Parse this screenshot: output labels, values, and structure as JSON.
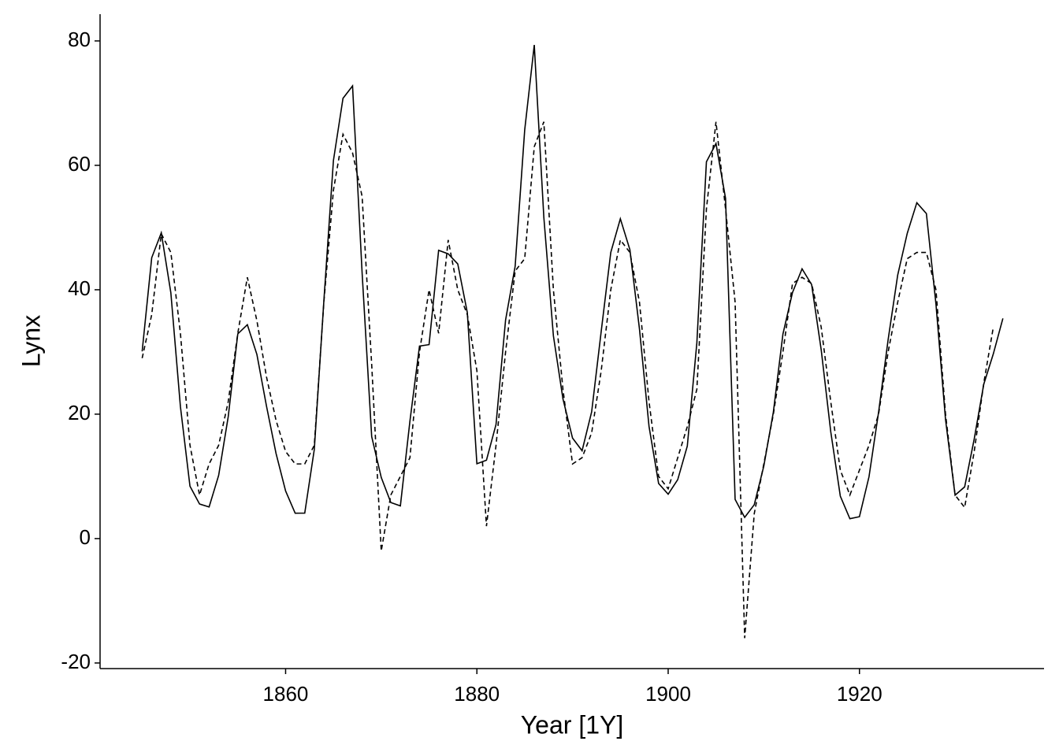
{
  "chart_data": {
    "type": "line",
    "x_label": "Year [1Y]",
    "y_label": "Lynx",
    "x": [
      1845,
      1846,
      1847,
      1848,
      1849,
      1850,
      1851,
      1852,
      1853,
      1854,
      1855,
      1856,
      1857,
      1858,
      1859,
      1860,
      1861,
      1862,
      1863,
      1864,
      1865,
      1866,
      1867,
      1868,
      1869,
      1870,
      1871,
      1872,
      1873,
      1874,
      1875,
      1876,
      1877,
      1878,
      1879,
      1880,
      1881,
      1882,
      1883,
      1884,
      1885,
      1886,
      1887,
      1888,
      1889,
      1890,
      1891,
      1892,
      1893,
      1894,
      1895,
      1896,
      1897,
      1898,
      1899,
      1900,
      1901,
      1902,
      1903,
      1904,
      1905,
      1906,
      1907,
      1908,
      1909,
      1910,
      1911,
      1912,
      1913,
      1914,
      1915,
      1916,
      1917,
      1918,
      1919,
      1920,
      1921,
      1922,
      1923,
      1924,
      1925,
      1926,
      1927,
      1928,
      1929,
      1930,
      1931,
      1932,
      1933,
      1934,
      1935
    ],
    "series": [
      {
        "color": "#000000",
        "linestyle": "solid",
        "values": [
          30.09,
          45.15,
          49.15,
          39.52,
          21.23,
          8.42,
          5.56,
          5.08,
          10.17,
          19.6,
          32.91,
          34.38,
          29.59,
          21.3,
          13.69,
          7.65,
          4.08,
          4.09,
          14.33,
          38.22,
          60.78,
          70.77,
          72.77,
          42.68,
          16.39,
          9.83,
          5.8,
          5.26,
          18.91,
          30.95,
          31.18,
          46.34,
          45.77,
          44.15,
          36.33,
          12.03,
          12.6,
          18.34,
          35.14,
          43.77,
          65.69,
          79.35,
          51.65,
          32.59,
          22.45,
          16.16,
          14.12,
          20.38,
          33.33,
          46.0,
          51.41,
          46.43,
          33.68,
          18.01,
          8.86,
          7.13,
          9.47,
          14.86,
          31.47,
          60.57,
          63.51,
          54.7,
          6.3,
          3.41,
          5.44,
          11.65,
          20.35,
          32.88,
          39.55,
          43.36,
          40.83,
          30.36,
          17.18,
          6.82,
          3.19,
          3.52,
          9.94,
          20.3,
          31.99,
          42.36,
          49.08,
          53.99,
          52.25,
          37.7,
          19.14,
          6.98,
          8.31,
          16.01,
          24.82,
          29.7,
          35.4
        ]
      },
      {
        "color": "#000000",
        "linestyle": "dashed",
        "values": [
          29,
          36,
          49,
          46,
          33,
          15,
          7,
          12,
          15,
          22,
          33,
          42,
          35,
          26,
          19,
          14,
          12,
          12,
          15,
          38,
          56,
          65,
          62,
          55,
          28,
          -2,
          7,
          10,
          13,
          30,
          40,
          33,
          48,
          40,
          36,
          27,
          2,
          15,
          30,
          43,
          45,
          63,
          67,
          40,
          24,
          12,
          13,
          17,
          27,
          40,
          48,
          46,
          38,
          22,
          10,
          8,
          13,
          18,
          24,
          53,
          67,
          53,
          38,
          -16,
          4,
          12,
          20,
          30,
          41,
          42,
          41,
          34,
          22,
          11,
          7,
          11,
          15,
          20,
          30,
          38,
          45,
          46,
          46,
          40,
          20,
          7,
          5,
          14,
          25,
          34,
          null
        ]
      }
    ],
    "xlim": [
      1840.6,
      1939.3
    ],
    "xticks": [
      1860,
      1880,
      1900,
      1920
    ],
    "ylim": [
      -20.9,
      84.3
    ],
    "yticks": [
      -20,
      0,
      20,
      40,
      60,
      80
    ]
  }
}
